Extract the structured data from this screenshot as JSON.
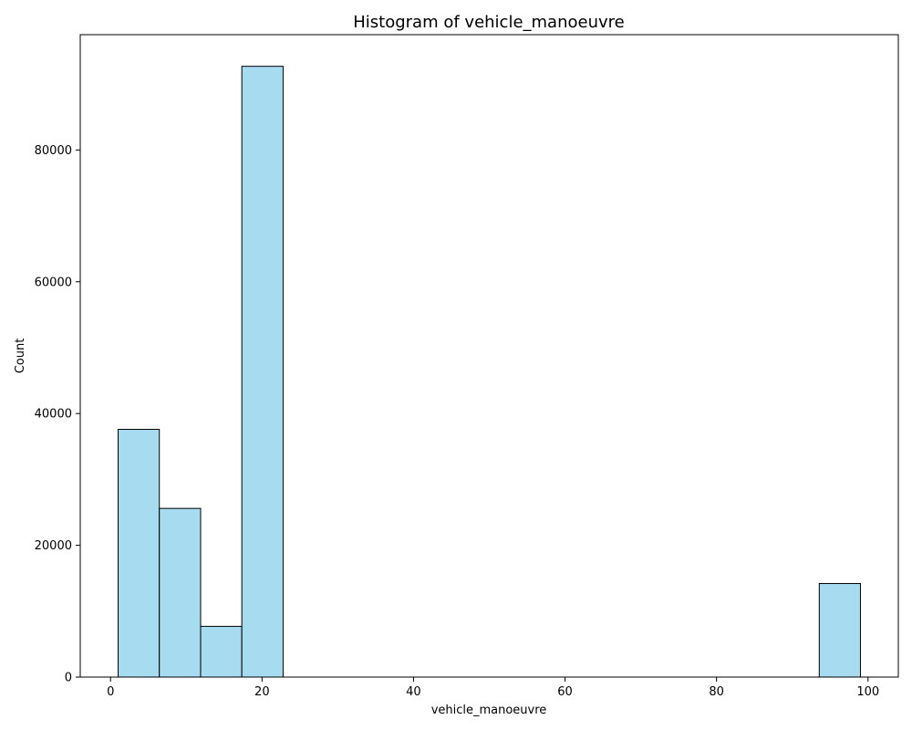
{
  "chart_data": {
    "type": "bar",
    "title": "Histogram of vehicle_manoeuvre",
    "xlabel": "vehicle_manoeuvre",
    "ylabel": "Count",
    "xlim": [
      -4,
      104
    ],
    "ylim": [
      0,
      97500
    ],
    "x_ticks": [
      0,
      20,
      40,
      60,
      80,
      100
    ],
    "y_ticks": [
      0,
      20000,
      40000,
      60000,
      80000
    ],
    "grid": false,
    "bar_color": "#a6dbf0",
    "edge_color": "#000000",
    "bins": [
      {
        "x0": 1.0,
        "x1": 6.44,
        "value": 37600
      },
      {
        "x0": 6.44,
        "x1": 11.89,
        "value": 25600
      },
      {
        "x0": 11.89,
        "x1": 17.33,
        "value": 7700
      },
      {
        "x0": 17.33,
        "x1": 22.78,
        "value": 92700
      },
      {
        "x0": 22.78,
        "x1": 28.22,
        "value": 0
      },
      {
        "x0": 28.22,
        "x1": 33.67,
        "value": 0
      },
      {
        "x0": 33.67,
        "x1": 39.11,
        "value": 0
      },
      {
        "x0": 39.11,
        "x1": 44.56,
        "value": 0
      },
      {
        "x0": 44.56,
        "x1": 50.0,
        "value": 0
      },
      {
        "x0": 50.0,
        "x1": 55.44,
        "value": 0
      },
      {
        "x0": 55.44,
        "x1": 60.89,
        "value": 0
      },
      {
        "x0": 60.89,
        "x1": 66.33,
        "value": 0
      },
      {
        "x0": 66.33,
        "x1": 71.78,
        "value": 0
      },
      {
        "x0": 71.78,
        "x1": 77.22,
        "value": 0
      },
      {
        "x0": 77.22,
        "x1": 82.67,
        "value": 0
      },
      {
        "x0": 82.67,
        "x1": 88.11,
        "value": 0
      },
      {
        "x0": 88.11,
        "x1": 93.56,
        "value": 0
      },
      {
        "x0": 93.56,
        "x1": 99.0,
        "value": 14200
      }
    ]
  }
}
